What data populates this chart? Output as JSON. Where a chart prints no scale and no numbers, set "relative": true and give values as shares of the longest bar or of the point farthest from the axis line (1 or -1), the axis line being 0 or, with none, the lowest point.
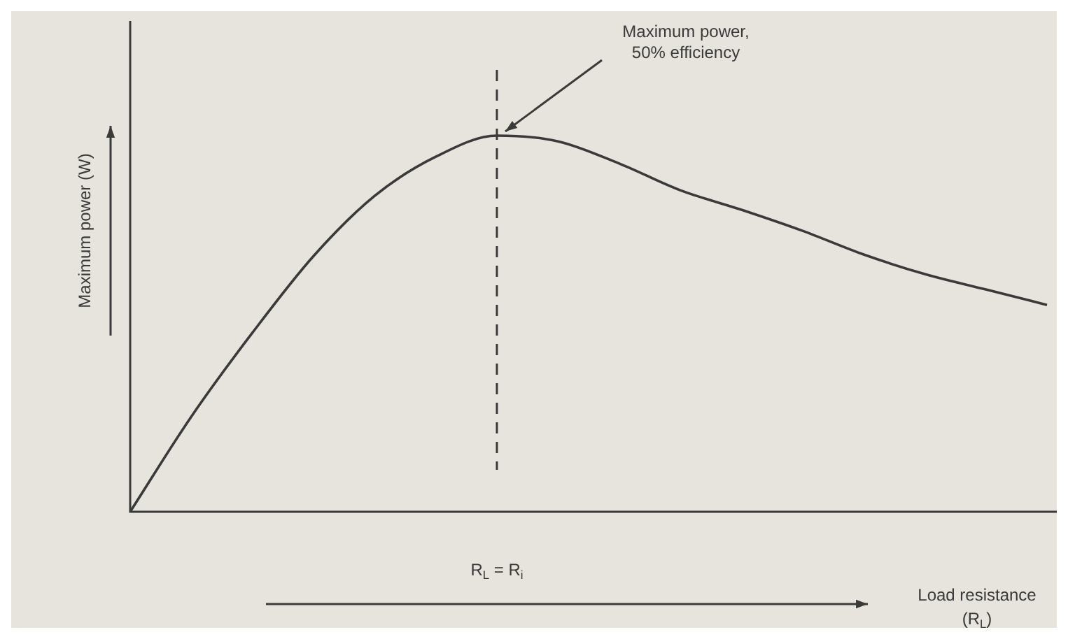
{
  "chart_data": {
    "type": "line",
    "relative": true,
    "xlabel": "Load resistance (R$_{L}$)",
    "ylabel": "Maximum power (W)",
    "categories": [
      null,
      null,
      null,
      null,
      null,
      null,
      null,
      null,
      null,
      null,
      null,
      null,
      null,
      null,
      null,
      null
    ],
    "series": [
      {
        "color": "#3a3a3a",
        "values": [
          0,
          0.253,
          0.476,
          0.68,
          0.84,
          0.944,
          1,
          0.985,
          0.926,
          0.855,
          0.803,
          0.747,
          0.684,
          0.632,
          0.591,
          0.55
        ]
      }
    ],
    "ref_lines": [
      {
        "axis": "x",
        "label": "R$_{L}$ = R$_{i}$",
        "line_style": "dashed",
        "color": "#3a3a3a"
      }
    ],
    "annotations": [
      "Maximum power, 50% efficiency"
    ],
    "legend": false,
    "marker": "none",
    "line_style": "solid"
  }
}
